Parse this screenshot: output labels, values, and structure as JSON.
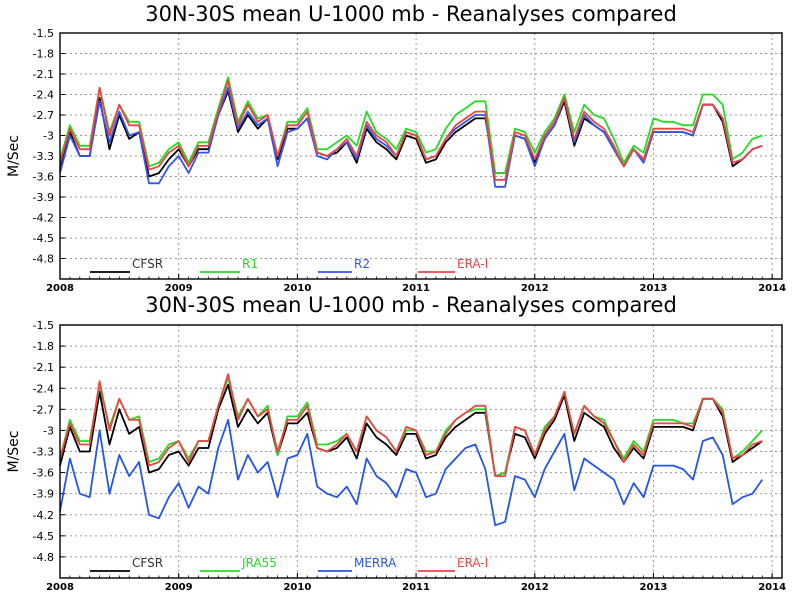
{
  "chart_data": [
    {
      "type": "line",
      "title": "30N-30S mean U-1000 mb - Reanalyses compared",
      "ylabel": "M/Sec",
      "xlabel": "",
      "ylim": [
        -5.1,
        -1.5
      ],
      "yticks": [
        "-1.5",
        "-1.8",
        "-2.1",
        "-2.4",
        "-2.7",
        "-3",
        "-3.3",
        "-3.6",
        "-3.9",
        "-4.2",
        "-4.5",
        "-4.8"
      ],
      "xlim": [
        2008.0,
        2014.083
      ],
      "xticks": [
        "2008",
        "2009",
        "2010",
        "2011",
        "2012",
        "2013",
        "2014"
      ],
      "x_start_year": 2008,
      "grid": true,
      "legend_position": "bottom",
      "series": [
        {
          "name": "CFSR",
          "color": "#000000",
          "values": [
            -3.5,
            -2.95,
            -3.3,
            -3.3,
            -2.45,
            -3.2,
            -2.7,
            -3.05,
            -2.95,
            -3.6,
            -3.55,
            -3.35,
            -3.2,
            -3.45,
            -3.2,
            -3.2,
            -2.7,
            -2.35,
            -2.95,
            -2.7,
            -2.9,
            -2.75,
            -3.35,
            -2.9,
            -2.9,
            -2.75,
            -3.25,
            -3.3,
            -3.25,
            -3.1,
            -3.4,
            -2.9,
            -3.1,
            -3.2,
            -3.35,
            -3.0,
            -3.05,
            -3.4,
            -3.35,
            -3.1,
            -2.95,
            -2.85,
            -2.75,
            -2.75,
            -3.55,
            -3.55,
            -3.0,
            -3.05,
            -3.4,
            -3.05,
            -2.85,
            -2.5,
            -3.15,
            -2.75,
            -2.85,
            -2.95,
            -3.2,
            -3.45,
            -3.2,
            -3.35,
            -2.95,
            -2.95,
            -2.95,
            -2.95,
            -3.0,
            -2.55,
            -2.55,
            -2.8,
            -3.45,
            -3.35,
            -3.2,
            -3.15
          ]
        },
        {
          "name": "R1",
          "color": "#22dd22",
          "values": [
            -3.35,
            -2.85,
            -3.15,
            -3.15,
            -2.3,
            -2.95,
            -2.55,
            -2.8,
            -2.8,
            -3.45,
            -3.4,
            -3.2,
            -3.1,
            -3.4,
            -3.1,
            -3.1,
            -2.6,
            -2.15,
            -2.8,
            -2.5,
            -2.75,
            -2.7,
            -3.3,
            -2.8,
            -2.8,
            -2.6,
            -3.2,
            -3.2,
            -3.1,
            -3.0,
            -3.15,
            -2.65,
            -2.95,
            -3.05,
            -3.2,
            -2.9,
            -2.95,
            -3.25,
            -3.2,
            -2.9,
            -2.7,
            -2.6,
            -2.5,
            -2.5,
            -3.55,
            -3.55,
            -2.9,
            -2.95,
            -3.25,
            -2.95,
            -2.75,
            -2.4,
            -2.95,
            -2.55,
            -2.7,
            -2.75,
            -3.05,
            -3.4,
            -3.15,
            -3.25,
            -2.75,
            -2.8,
            -2.8,
            -2.85,
            -2.85,
            -2.4,
            -2.4,
            -2.55,
            -3.35,
            -3.25,
            -3.05,
            -3.0
          ]
        },
        {
          "name": "R2",
          "color": "#3355ee",
          "values": [
            -3.55,
            -3.0,
            -3.3,
            -3.3,
            -2.5,
            -3.1,
            -2.65,
            -3.0,
            -2.95,
            -3.7,
            -3.7,
            -3.45,
            -3.3,
            -3.55,
            -3.25,
            -3.25,
            -2.7,
            -2.3,
            -2.9,
            -2.65,
            -2.85,
            -2.75,
            -3.45,
            -2.95,
            -2.9,
            -2.75,
            -3.3,
            -3.35,
            -3.2,
            -3.1,
            -3.35,
            -2.85,
            -3.05,
            -3.15,
            -3.3,
            -2.95,
            -3.0,
            -3.35,
            -3.3,
            -3.05,
            -2.9,
            -2.8,
            -2.7,
            -2.7,
            -3.75,
            -3.75,
            -3.0,
            -3.05,
            -3.45,
            -3.05,
            -2.85,
            -2.45,
            -3.1,
            -2.7,
            -2.85,
            -2.95,
            -3.2,
            -3.45,
            -3.2,
            -3.4,
            -2.95,
            -2.95,
            -2.95,
            -2.95,
            -3.0,
            -2.55,
            -2.55,
            -2.75,
            -3.4,
            -3.35,
            -3.2,
            -3.15
          ]
        },
        {
          "name": "ERA-I",
          "color": "#ee4444",
          "values": [
            -3.4,
            -2.9,
            -3.2,
            -3.2,
            -2.3,
            -3.0,
            -2.55,
            -2.85,
            -2.85,
            -3.5,
            -3.45,
            -3.25,
            -3.15,
            -3.45,
            -3.15,
            -3.15,
            -2.65,
            -2.2,
            -2.85,
            -2.55,
            -2.8,
            -2.7,
            -3.3,
            -2.85,
            -2.85,
            -2.65,
            -3.25,
            -3.3,
            -3.2,
            -3.05,
            -3.3,
            -2.8,
            -3.0,
            -3.1,
            -3.3,
            -2.95,
            -3.0,
            -3.35,
            -3.3,
            -3.05,
            -2.85,
            -2.75,
            -2.65,
            -2.65,
            -3.65,
            -3.65,
            -2.95,
            -3.0,
            -3.35,
            -3.0,
            -2.8,
            -2.45,
            -3.05,
            -2.65,
            -2.8,
            -2.9,
            -3.15,
            -3.45,
            -3.2,
            -3.35,
            -2.9,
            -2.9,
            -2.9,
            -2.9,
            -2.95,
            -2.55,
            -2.55,
            -2.75,
            -3.4,
            -3.35,
            -3.2,
            -3.15
          ]
        }
      ]
    },
    {
      "type": "line",
      "title": "30N-30S mean U-1000 mb - Reanalyses compared",
      "ylabel": "M/Sec",
      "xlabel": "",
      "ylim": [
        -5.1,
        -1.5
      ],
      "yticks": [
        "-1.5",
        "-1.8",
        "-2.1",
        "-2.4",
        "-2.7",
        "-3",
        "-3.3",
        "-3.6",
        "-3.9",
        "-4.2",
        "-4.5",
        "-4.8"
      ],
      "xlim": [
        2008.0,
        2014.083
      ],
      "xticks": [
        "2008",
        "2009",
        "2010",
        "2011",
        "2012",
        "2013",
        "2014"
      ],
      "x_start_year": 2008,
      "grid": true,
      "legend_position": "bottom",
      "series": [
        {
          "name": "CFSR",
          "color": "#000000",
          "values": [
            -3.5,
            -2.95,
            -3.3,
            -3.3,
            -2.45,
            -3.2,
            -2.7,
            -3.05,
            -2.95,
            -3.6,
            -3.55,
            -3.35,
            -3.3,
            -3.5,
            -3.25,
            -3.25,
            -2.7,
            -2.35,
            -2.95,
            -2.7,
            -2.9,
            -2.75,
            -3.35,
            -2.9,
            -2.9,
            -2.75,
            -3.25,
            -3.3,
            -3.25,
            -3.1,
            -3.4,
            -2.9,
            -3.1,
            -3.2,
            -3.35,
            -3.05,
            -3.05,
            -3.4,
            -3.35,
            -3.1,
            -2.95,
            -2.85,
            -2.75,
            -2.75,
            -3.65,
            -3.6,
            -3.05,
            -3.1,
            -3.4,
            -3.05,
            -2.85,
            -2.5,
            -3.15,
            -2.75,
            -2.85,
            -2.95,
            -3.25,
            -3.45,
            -3.25,
            -3.4,
            -2.95,
            -2.95,
            -2.95,
            -2.95,
            -3.0,
            -2.55,
            -2.55,
            -2.8,
            -3.45,
            -3.35,
            -3.25,
            -3.15
          ]
        },
        {
          "name": "JRA55",
          "color": "#22dd22",
          "values": [
            -3.4,
            -2.85,
            -3.15,
            -3.15,
            -2.35,
            -2.95,
            -2.55,
            -2.85,
            -2.8,
            -3.45,
            -3.4,
            -3.2,
            -3.15,
            -3.4,
            -3.15,
            -3.15,
            -2.65,
            -2.25,
            -2.8,
            -2.55,
            -2.8,
            -2.65,
            -3.35,
            -2.8,
            -2.8,
            -2.6,
            -3.2,
            -3.2,
            -3.15,
            -3.05,
            -3.3,
            -2.8,
            -3.0,
            -3.1,
            -3.3,
            -3.0,
            -3.0,
            -3.3,
            -3.3,
            -3.0,
            -2.85,
            -2.75,
            -2.7,
            -2.7,
            -3.65,
            -3.6,
            -2.95,
            -3.0,
            -3.35,
            -2.95,
            -2.8,
            -2.45,
            -3.05,
            -2.65,
            -2.8,
            -2.85,
            -3.15,
            -3.4,
            -3.15,
            -3.3,
            -2.85,
            -2.85,
            -2.85,
            -2.9,
            -2.9,
            -2.55,
            -2.55,
            -2.7,
            -3.4,
            -3.3,
            -3.15,
            -3.0
          ]
        },
        {
          "name": "MERRA",
          "color": "#2255ee",
          "values": [
            -4.15,
            -3.4,
            -3.9,
            -3.95,
            -3.0,
            -3.9,
            -3.35,
            -3.65,
            -3.45,
            -4.2,
            -4.25,
            -3.95,
            -3.75,
            -4.1,
            -3.8,
            -3.9,
            -3.25,
            -2.85,
            -3.7,
            -3.35,
            -3.6,
            -3.45,
            -3.95,
            -3.4,
            -3.35,
            -3.05,
            -3.8,
            -3.9,
            -3.95,
            -3.8,
            -4.05,
            -3.4,
            -3.65,
            -3.75,
            -3.95,
            -3.55,
            -3.6,
            -3.95,
            -3.9,
            -3.55,
            -3.4,
            -3.25,
            -3.2,
            -3.55,
            -4.35,
            -4.3,
            -3.65,
            -3.7,
            -3.95,
            -3.55,
            -3.3,
            -3.05,
            -3.85,
            -3.4,
            -3.5,
            -3.6,
            -3.7,
            -4.05,
            -3.75,
            -3.95,
            -3.5,
            -3.5,
            -3.5,
            -3.55,
            -3.7,
            -3.15,
            -3.1,
            -3.35,
            -4.05,
            -3.95,
            -3.9,
            -3.7
          ]
        },
        {
          "name": "ERA-I",
          "color": "#ee4444",
          "values": [
            -3.4,
            -2.9,
            -3.2,
            -3.2,
            -2.3,
            -3.0,
            -2.55,
            -2.85,
            -2.85,
            -3.5,
            -3.45,
            -3.25,
            -3.15,
            -3.45,
            -3.15,
            -3.15,
            -2.65,
            -2.2,
            -2.85,
            -2.55,
            -2.8,
            -2.7,
            -3.3,
            -2.85,
            -2.85,
            -2.65,
            -3.25,
            -3.3,
            -3.2,
            -3.05,
            -3.3,
            -2.8,
            -3.0,
            -3.1,
            -3.3,
            -2.95,
            -3.0,
            -3.35,
            -3.3,
            -3.05,
            -2.85,
            -2.75,
            -2.65,
            -2.65,
            -3.65,
            -3.65,
            -2.95,
            -3.0,
            -3.35,
            -3.0,
            -2.8,
            -2.45,
            -3.05,
            -2.65,
            -2.8,
            -2.9,
            -3.15,
            -3.45,
            -3.2,
            -3.35,
            -2.9,
            -2.9,
            -2.9,
            -2.9,
            -2.95,
            -2.55,
            -2.55,
            -2.75,
            -3.4,
            -3.35,
            -3.2,
            -3.15
          ]
        }
      ]
    }
  ]
}
